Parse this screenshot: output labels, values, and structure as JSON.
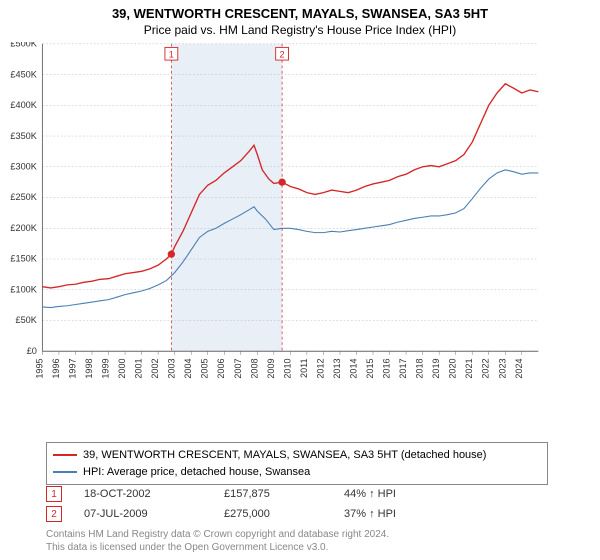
{
  "title": "39, WENTWORTH CRESCENT, MAYALS, SWANSEA, SA3 5HT",
  "subtitle": "Price paid vs. HM Land Registry's House Price Index (HPI)",
  "chart": {
    "type": "line",
    "background_color": "#ffffff",
    "grid_color": "#b8b8b8",
    "axis_color": "#666666",
    "ylim": [
      0,
      500000
    ],
    "ytick_step": 50000,
    "yticks": [
      "£0",
      "£50K",
      "£100K",
      "£150K",
      "£200K",
      "£250K",
      "£300K",
      "£350K",
      "£400K",
      "£450K",
      "£500K"
    ],
    "xlim": [
      1995,
      2025
    ],
    "xticks": [
      "1995",
      "1996",
      "1997",
      "1998",
      "1999",
      "2000",
      "2001",
      "2002",
      "2003",
      "2004",
      "2005",
      "2006",
      "2007",
      "2008",
      "2009",
      "2010",
      "2011",
      "2012",
      "2013",
      "2014",
      "2015",
      "2016",
      "2017",
      "2018",
      "2019",
      "2020",
      "2021",
      "2022",
      "2023",
      "2024"
    ],
    "shaded_band": {
      "start": 2002.8,
      "end": 2009.5,
      "color": "#e8eff7"
    },
    "series": [
      {
        "name": "property",
        "color": "#d62728",
        "line_width": 1.5,
        "data": [
          [
            1995,
            105000
          ],
          [
            1995.5,
            103000
          ],
          [
            1996,
            105000
          ],
          [
            1996.5,
            108000
          ],
          [
            1997,
            109000
          ],
          [
            1997.5,
            112000
          ],
          [
            1998,
            114000
          ],
          [
            1998.5,
            117000
          ],
          [
            1999,
            118000
          ],
          [
            1999.5,
            122000
          ],
          [
            2000,
            126000
          ],
          [
            2000.5,
            128000
          ],
          [
            2001,
            130000
          ],
          [
            2001.5,
            134000
          ],
          [
            2002,
            140000
          ],
          [
            2002.5,
            150000
          ],
          [
            2002.8,
            157875
          ],
          [
            2003,
            170000
          ],
          [
            2003.5,
            195000
          ],
          [
            2004,
            225000
          ],
          [
            2004.5,
            255000
          ],
          [
            2005,
            270000
          ],
          [
            2005.5,
            278000
          ],
          [
            2006,
            290000
          ],
          [
            2006.5,
            300000
          ],
          [
            2007,
            310000
          ],
          [
            2007.5,
            325000
          ],
          [
            2007.8,
            335000
          ],
          [
            2008,
            320000
          ],
          [
            2008.3,
            295000
          ],
          [
            2008.7,
            280000
          ],
          [
            2009,
            273000
          ],
          [
            2009.5,
            275000
          ],
          [
            2010,
            268000
          ],
          [
            2010.5,
            264000
          ],
          [
            2011,
            258000
          ],
          [
            2011.5,
            255000
          ],
          [
            2012,
            258000
          ],
          [
            2012.5,
            262000
          ],
          [
            2013,
            260000
          ],
          [
            2013.5,
            258000
          ],
          [
            2014,
            262000
          ],
          [
            2014.5,
            268000
          ],
          [
            2015,
            272000
          ],
          [
            2015.5,
            275000
          ],
          [
            2016,
            278000
          ],
          [
            2016.5,
            284000
          ],
          [
            2017,
            288000
          ],
          [
            2017.5,
            295000
          ],
          [
            2018,
            300000
          ],
          [
            2018.5,
            302000
          ],
          [
            2019,
            300000
          ],
          [
            2019.5,
            305000
          ],
          [
            2020,
            310000
          ],
          [
            2020.5,
            320000
          ],
          [
            2021,
            340000
          ],
          [
            2021.5,
            370000
          ],
          [
            2022,
            400000
          ],
          [
            2022.5,
            420000
          ],
          [
            2023,
            435000
          ],
          [
            2023.5,
            428000
          ],
          [
            2024,
            420000
          ],
          [
            2024.5,
            425000
          ],
          [
            2025,
            422000
          ]
        ]
      },
      {
        "name": "hpi",
        "color": "#4a7fb5",
        "line_width": 1.2,
        "data": [
          [
            1995,
            72000
          ],
          [
            1995.5,
            71000
          ],
          [
            1996,
            73000
          ],
          [
            1996.5,
            74000
          ],
          [
            1997,
            76000
          ],
          [
            1997.5,
            78000
          ],
          [
            1998,
            80000
          ],
          [
            1998.5,
            82000
          ],
          [
            1999,
            84000
          ],
          [
            1999.5,
            88000
          ],
          [
            2000,
            92000
          ],
          [
            2000.5,
            95000
          ],
          [
            2001,
            98000
          ],
          [
            2001.5,
            102000
          ],
          [
            2002,
            108000
          ],
          [
            2002.5,
            115000
          ],
          [
            2003,
            128000
          ],
          [
            2003.5,
            145000
          ],
          [
            2004,
            165000
          ],
          [
            2004.5,
            185000
          ],
          [
            2005,
            195000
          ],
          [
            2005.5,
            200000
          ],
          [
            2006,
            208000
          ],
          [
            2006.5,
            215000
          ],
          [
            2007,
            222000
          ],
          [
            2007.5,
            230000
          ],
          [
            2007.8,
            235000
          ],
          [
            2008,
            228000
          ],
          [
            2008.5,
            215000
          ],
          [
            2009,
            198000
          ],
          [
            2009.5,
            200000
          ],
          [
            2010,
            200000
          ],
          [
            2010.5,
            198000
          ],
          [
            2011,
            195000
          ],
          [
            2011.5,
            193000
          ],
          [
            2012,
            193000
          ],
          [
            2012.5,
            195000
          ],
          [
            2013,
            194000
          ],
          [
            2013.5,
            196000
          ],
          [
            2014,
            198000
          ],
          [
            2014.5,
            200000
          ],
          [
            2015,
            202000
          ],
          [
            2015.5,
            204000
          ],
          [
            2016,
            206000
          ],
          [
            2016.5,
            210000
          ],
          [
            2017,
            213000
          ],
          [
            2017.5,
            216000
          ],
          [
            2018,
            218000
          ],
          [
            2018.5,
            220000
          ],
          [
            2019,
            220000
          ],
          [
            2019.5,
            222000
          ],
          [
            2020,
            225000
          ],
          [
            2020.5,
            232000
          ],
          [
            2021,
            248000
          ],
          [
            2021.5,
            265000
          ],
          [
            2022,
            280000
          ],
          [
            2022.5,
            290000
          ],
          [
            2023,
            295000
          ],
          [
            2023.5,
            292000
          ],
          [
            2024,
            288000
          ],
          [
            2024.5,
            290000
          ],
          [
            2025,
            290000
          ]
        ]
      }
    ],
    "sale_markers": [
      {
        "num": "1",
        "x": 2002.8,
        "y": 157875,
        "color": "#d62728"
      },
      {
        "num": "2",
        "x": 2009.5,
        "y": 275000,
        "color": "#d62728"
      }
    ],
    "label_fontsize": 10,
    "tick_fontsize": 10
  },
  "legend": {
    "items": [
      {
        "color": "#d62728",
        "label": "39, WENTWORTH CRESCENT, MAYALS, SWANSEA, SA3 5HT (detached house)"
      },
      {
        "color": "#4a7fb5",
        "label": "HPI: Average price, detached house, Swansea"
      }
    ]
  },
  "sales": [
    {
      "num": "1",
      "color": "#d62728",
      "date": "18-OCT-2002",
      "price": "£157,875",
      "hpi": "44% ↑ HPI"
    },
    {
      "num": "2",
      "color": "#d62728",
      "date": "07-JUL-2009",
      "price": "£275,000",
      "hpi": "37% ↑ HPI"
    }
  ],
  "footer": {
    "line1": "Contains HM Land Registry data © Crown copyright and database right 2024.",
    "line2": "This data is licensed under the Open Government Licence v3.0."
  }
}
